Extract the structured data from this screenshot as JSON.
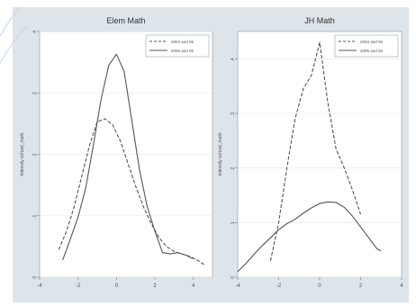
{
  "chart_data": [
    {
      "type": "line",
      "title": "Elem Math",
      "ylabel": "kdensity school_math",
      "xlabel": "",
      "xlim": [
        -4,
        5
      ],
      "ylim": [
        0,
        0.4
      ],
      "xticks": [
        "-4",
        "-2",
        "0",
        "2",
        "4"
      ],
      "yticks": [
        "0",
        ".1",
        ".2",
        ".3",
        ".4"
      ],
      "grid": true,
      "legend_position": "top-right",
      "series": [
        {
          "name": "2004 and 05",
          "style": "dashed",
          "color": "#555555",
          "x": [
            -3.0,
            -2.6,
            -2.2,
            -1.8,
            -1.4,
            -1.0,
            -0.6,
            -0.2,
            0.2,
            0.6,
            1.0,
            1.4,
            1.8,
            2.2,
            2.6,
            3.0,
            3.4,
            3.8,
            4.2,
            4.6
          ],
          "y": [
            0.045,
            0.075,
            0.115,
            0.165,
            0.215,
            0.253,
            0.258,
            0.248,
            0.222,
            0.185,
            0.148,
            0.115,
            0.088,
            0.065,
            0.05,
            0.042,
            0.038,
            0.034,
            0.028,
            0.02
          ]
        },
        {
          "name": "2005 and 06",
          "style": "solid",
          "color": "#555555",
          "x": [
            -2.8,
            -2.4,
            -2.0,
            -1.6,
            -1.2,
            -0.8,
            -0.4,
            0.0,
            0.4,
            0.8,
            1.2,
            1.6,
            2.0,
            2.4,
            2.8,
            3.2,
            3.6,
            4.0
          ],
          "y": [
            0.028,
            0.062,
            0.098,
            0.145,
            0.215,
            0.29,
            0.345,
            0.363,
            0.335,
            0.255,
            0.175,
            0.115,
            0.075,
            0.04,
            0.038,
            0.04,
            0.036,
            0.03
          ]
        }
      ]
    },
    {
      "type": "line",
      "title": "JH Math",
      "ylabel": "kdensity school_math",
      "xlabel": "",
      "xlim": [
        -4,
        4
      ],
      "ylim": [
        0,
        0.45
      ],
      "xticks": [
        "-4",
        "-2",
        "0",
        "2",
        "4"
      ],
      "yticks": [
        "0",
        ".1",
        ".2",
        ".3",
        ".4"
      ],
      "grid": true,
      "legend_position": "top-right",
      "series": [
        {
          "name": "2004 and 05",
          "style": "dashed",
          "color": "#555555",
          "x": [
            -2.4,
            -2.0,
            -1.6,
            -1.2,
            -0.8,
            -0.4,
            0.0,
            0.4,
            0.8,
            1.2,
            1.6,
            2.0
          ],
          "y": [
            0.03,
            0.1,
            0.2,
            0.29,
            0.345,
            0.37,
            0.43,
            0.32,
            0.235,
            0.2,
            0.16,
            0.115
          ]
        },
        {
          "name": "2005 and 06",
          "style": "solid",
          "color": "#555555",
          "x": [
            -4.0,
            -3.6,
            -3.2,
            -2.8,
            -2.4,
            -2.0,
            -1.6,
            -1.2,
            -0.8,
            -0.4,
            0.0,
            0.4,
            0.8,
            1.2,
            1.6,
            2.0,
            2.4,
            2.8,
            3.0
          ],
          "y": [
            0.01,
            0.025,
            0.042,
            0.058,
            0.072,
            0.087,
            0.098,
            0.106,
            0.117,
            0.127,
            0.135,
            0.138,
            0.137,
            0.128,
            0.112,
            0.092,
            0.072,
            0.052,
            0.048
          ]
        }
      ]
    }
  ]
}
